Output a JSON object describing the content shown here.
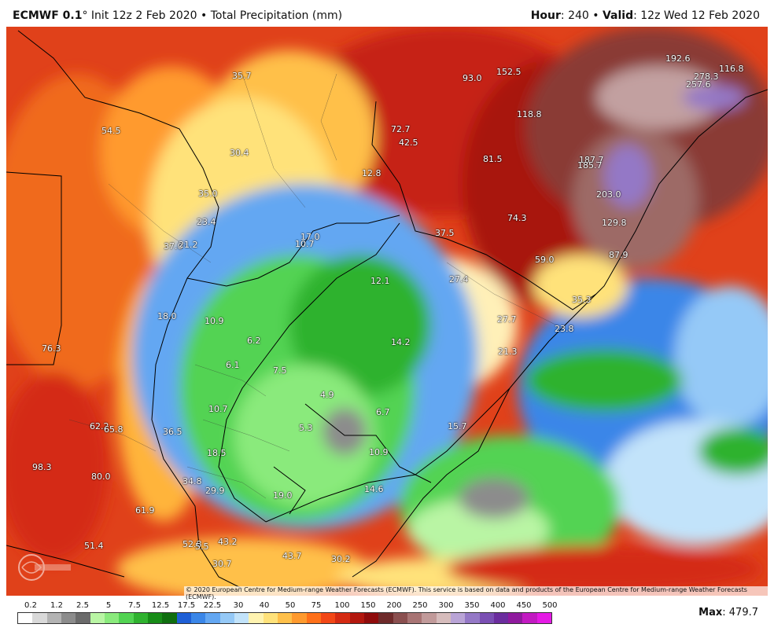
{
  "header": {
    "model": "ECMWF 0.1",
    "degree": "°",
    "init": "Init 12z 2 Feb 2020",
    "bullet": "•",
    "field": "Total Precipitation (mm)",
    "hour_label": "Hour",
    "hour_value": ": 240",
    "valid_label": "Valid",
    "valid_value": ": 12z Wed 12 Feb 2020"
  },
  "copyright": "© 2020 European Centre for Medium-range Weather Forecasts (ECMWF). This service is based on data and products of the European Centre for Medium-range Weather Forecasts (ECMWF).",
  "legend": {
    "ticks": [
      "0.2",
      "1.2",
      "2.5",
      "5",
      "7.5",
      "12.5",
      "17.5",
      "22.5",
      "30",
      "40",
      "50",
      "75",
      "100",
      "150",
      "200",
      "250",
      "300",
      "350",
      "400",
      "450",
      "500"
    ],
    "colors": [
      "#ffffff",
      "#d9d9d9",
      "#b3b3b3",
      "#8c8c8c",
      "#6b6b6b",
      "#b9f5a4",
      "#8aea7c",
      "#52d352",
      "#2fb22f",
      "#178c17",
      "#0f6e0f",
      "#1e5fd6",
      "#3a86e8",
      "#63a7f2",
      "#95c9f7",
      "#c2e3fa",
      "#fff3b0",
      "#ffe27a",
      "#ffc04a",
      "#ff9a2e",
      "#ff7019",
      "#f24716",
      "#d42a12",
      "#b3170e",
      "#8f0b0b",
      "#6e2a2a",
      "#8a4f4f",
      "#a87474",
      "#c19a9a",
      "#d6bcbc",
      "#b9a4d6",
      "#9478c6",
      "#7a4fb3",
      "#6b2d9e",
      "#8f1a9e",
      "#c21ac2",
      "#e51ae5"
    ]
  },
  "max_label": "Max",
  "max_value": ": 479.7",
  "map_values": [
    {
      "text": "35.7"
    },
    {
      "text": "93.0"
    },
    {
      "text": "152.5"
    },
    {
      "text": "192.6"
    },
    {
      "text": "116.8"
    },
    {
      "text": "278.3"
    },
    {
      "text": "257.6"
    },
    {
      "text": "54.5"
    },
    {
      "text": "72.7"
    },
    {
      "text": "42.5"
    },
    {
      "text": "118.8"
    },
    {
      "text": "30.4"
    },
    {
      "text": "81.5"
    },
    {
      "text": "187.7"
    },
    {
      "text": "185.7"
    },
    {
      "text": "12.8"
    },
    {
      "text": "35.0"
    },
    {
      "text": "203.0"
    },
    {
      "text": "74.3"
    },
    {
      "text": "23.4"
    },
    {
      "text": "129.8"
    },
    {
      "text": "17.0"
    },
    {
      "text": "37.5"
    },
    {
      "text": "37.0"
    },
    {
      "text": "21.2"
    },
    {
      "text": "10.7"
    },
    {
      "text": "87.9"
    },
    {
      "text": "59.0"
    },
    {
      "text": "12.1"
    },
    {
      "text": "27.4"
    },
    {
      "text": "35.3"
    },
    {
      "text": "18.0"
    },
    {
      "text": "10.9"
    },
    {
      "text": "27.7"
    },
    {
      "text": "23.8"
    },
    {
      "text": "76.3"
    },
    {
      "text": "6.2"
    },
    {
      "text": "14.2"
    },
    {
      "text": "21.3"
    },
    {
      "text": "6.1"
    },
    {
      "text": "7.5"
    },
    {
      "text": "4.9"
    },
    {
      "text": "10.7"
    },
    {
      "text": "6.7"
    },
    {
      "text": "62.2"
    },
    {
      "text": "65.8"
    },
    {
      "text": "36.5"
    },
    {
      "text": "5.3"
    },
    {
      "text": "15.7"
    },
    {
      "text": "18.5"
    },
    {
      "text": "10.9"
    },
    {
      "text": "98.3"
    },
    {
      "text": "80.0"
    },
    {
      "text": "34.8"
    },
    {
      "text": "29.9"
    },
    {
      "text": "19.0"
    },
    {
      "text": "14.6"
    },
    {
      "text": "61.9"
    },
    {
      "text": "51.4"
    },
    {
      "text": "52.8"
    },
    {
      "text": "5.5"
    },
    {
      "text": "43.2"
    },
    {
      "text": "30.7"
    },
    {
      "text": "43.7"
    },
    {
      "text": "30.2"
    }
  ]
}
